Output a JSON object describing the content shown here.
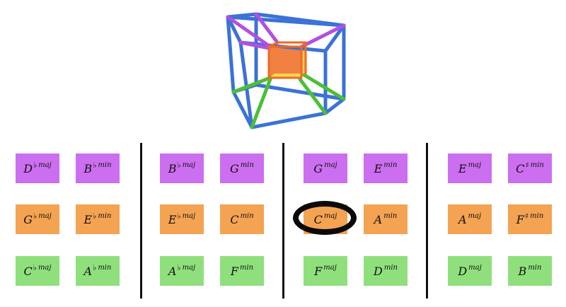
{
  "colors": {
    "top_row": "#cc6ef0",
    "middle_row": "#f4a352",
    "bottom_row": "#8fe07c",
    "cube_outer": "#3b72d6",
    "cube_diag_top": "#b44fe0",
    "cube_diag_bottom": "#4cbf36",
    "cube_inner": "#ee6a22",
    "divider": "#111111",
    "selection_ring": "#0a0a0a"
  },
  "groups": [
    {
      "chords": [
        {
          "root": "D",
          "acc": "♭",
          "qual": "maj",
          "row": "top"
        },
        {
          "root": "B",
          "acc": "♭",
          "qual": "min",
          "row": "top"
        },
        {
          "root": "G",
          "acc": "♭",
          "qual": "maj",
          "row": "middle"
        },
        {
          "root": "E",
          "acc": "♭",
          "qual": "min",
          "row": "middle"
        },
        {
          "root": "C",
          "acc": "♭",
          "qual": "maj",
          "row": "bottom"
        },
        {
          "root": "A",
          "acc": "♭",
          "qual": "min",
          "row": "bottom"
        }
      ]
    },
    {
      "chords": [
        {
          "root": "B",
          "acc": "♭",
          "qual": "maj",
          "row": "top"
        },
        {
          "root": "G",
          "acc": "",
          "qual": "min",
          "row": "top"
        },
        {
          "root": "E",
          "acc": "♭",
          "qual": "maj",
          "row": "middle"
        },
        {
          "root": "C",
          "acc": "",
          "qual": "min",
          "row": "middle"
        },
        {
          "root": "A",
          "acc": "♭",
          "qual": "maj",
          "row": "bottom"
        },
        {
          "root": "F",
          "acc": "",
          "qual": "min",
          "row": "bottom"
        }
      ]
    },
    {
      "chords": [
        {
          "root": "G",
          "acc": "",
          "qual": "maj",
          "row": "top"
        },
        {
          "root": "E",
          "acc": "",
          "qual": "min",
          "row": "top"
        },
        {
          "root": "C",
          "acc": "",
          "qual": "maj",
          "row": "middle",
          "selected": true
        },
        {
          "root": "A",
          "acc": "",
          "qual": "min",
          "row": "middle"
        },
        {
          "root": "F",
          "acc": "",
          "qual": "maj",
          "row": "bottom"
        },
        {
          "root": "D",
          "acc": "",
          "qual": "min",
          "row": "bottom"
        }
      ]
    },
    {
      "chords": [
        {
          "root": "E",
          "acc": "",
          "qual": "maj",
          "row": "top"
        },
        {
          "root": "C",
          "acc": "♯",
          "qual": "min",
          "row": "top"
        },
        {
          "root": "A",
          "acc": "",
          "qual": "maj",
          "row": "middle"
        },
        {
          "root": "F",
          "acc": "♯",
          "qual": "min",
          "row": "middle"
        },
        {
          "root": "D",
          "acc": "",
          "qual": "maj",
          "row": "bottom"
        },
        {
          "root": "B",
          "acc": "",
          "qual": "min",
          "row": "bottom"
        }
      ]
    }
  ]
}
